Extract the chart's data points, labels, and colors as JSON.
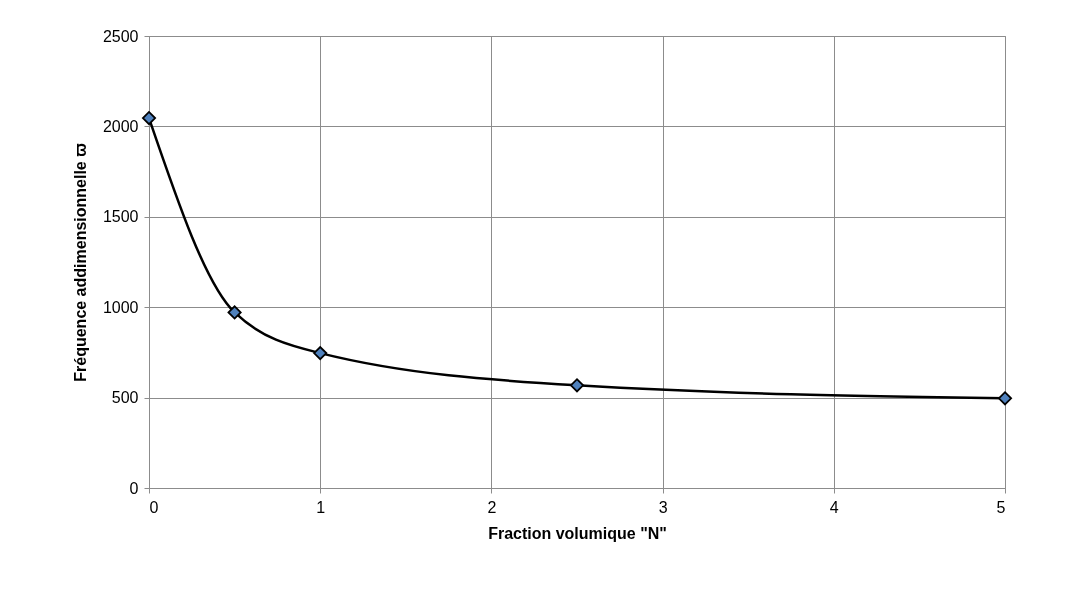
{
  "chart_data": {
    "type": "line",
    "xlabel": "Fraction volumique \"N\"",
    "ylabel": "Fréquence addimensionnelle ϖ",
    "x": [
      0,
      0.5,
      1,
      2.5,
      5
    ],
    "series": [
      {
        "color": "#4f81bd",
        "values": [
          2046,
          971,
          746,
          568,
          496
        ]
      }
    ],
    "xlim": [
      0,
      5
    ],
    "xticks": [
      0,
      1,
      2,
      3,
      4,
      5
    ],
    "ylim": [
      0,
      2500
    ],
    "yticks": [
      0,
      500,
      1000,
      1500,
      2000,
      2500
    ],
    "grid": true,
    "marker": "diamond",
    "line_style": "solid"
  }
}
